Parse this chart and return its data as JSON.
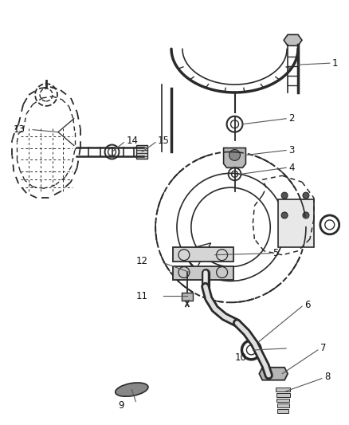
{
  "bg_color": "#ffffff",
  "lc": "#2a2a2a",
  "fig_w": 4.38,
  "fig_h": 5.33,
  "dpi": 100
}
